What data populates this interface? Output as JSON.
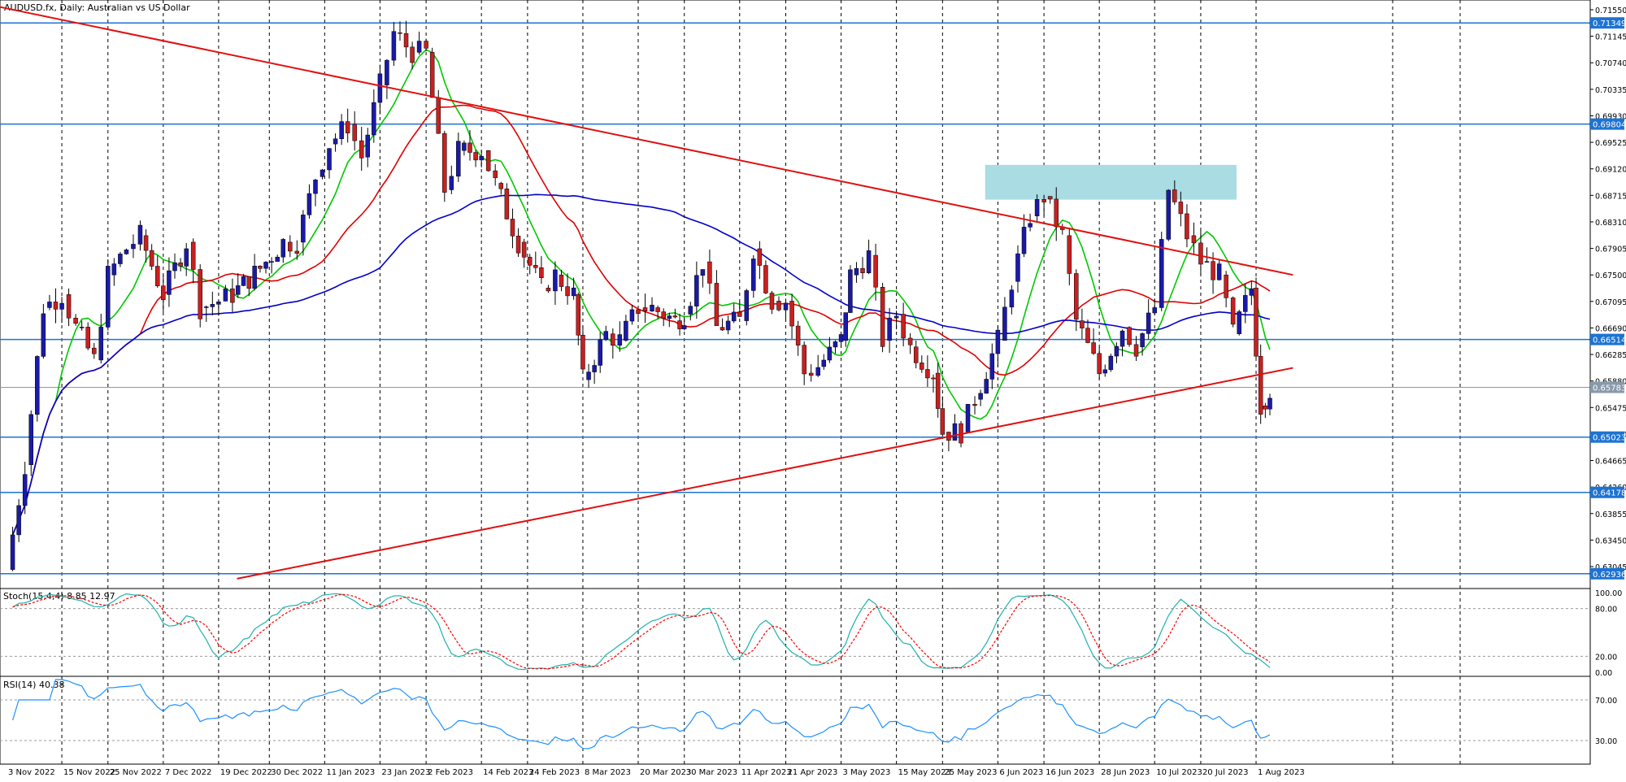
{
  "chart_data": {
    "type": "candlestick",
    "symbol_title": "AUDUSD.fx, Daily:  Australian vs US Dollar",
    "price_axis_ticks": [
      "0.71550",
      "0.71145",
      "0.70740",
      "0.70335",
      "0.69930",
      "0.69525",
      "0.69120",
      "0.68715",
      "0.68310",
      "0.67905",
      "0.67500",
      "0.67095",
      "0.66690",
      "0.66285",
      "0.65880",
      "0.65475",
      "0.65070",
      "0.64665",
      "0.64260",
      "0.63855",
      "0.63450",
      "0.63045"
    ],
    "date_labels": [
      "3 Nov 2022",
      "15 Nov 2022",
      "25 Nov 2022",
      "7 Dec 2022",
      "19 Dec 2022",
      "30 Dec 2022",
      "11 Jan 2023",
      "23 Jan 2023",
      "2 Feb 2023",
      "14 Feb 2023",
      "24 Feb 2023",
      "8 Mar 2023",
      "20 Mar 2023",
      "30 Mar 2023",
      "11 Apr 2023",
      "21 Apr 2023",
      "3 May 2023",
      "15 May 2023",
      "25 May 2023",
      "6 Jun 2023",
      "16 Jun 2023",
      "28 Jun 2023",
      "10 Jul 2023",
      "20 Jul 2023",
      "1 Aug 2023"
    ],
    "horizontal_levels": [
      {
        "label": "0.71349",
        "value": 0.71349
      },
      {
        "label": "0.69804",
        "value": 0.69804
      },
      {
        "label": "0.66514",
        "value": 0.66514
      },
      {
        "label": "0.65023",
        "value": 0.65023
      },
      {
        "label": "0.64178",
        "value": 0.64178
      },
      {
        "label": "0.62936",
        "value": 0.62936
      }
    ],
    "current_price": {
      "label": "0.65783",
      "value": 0.65783
    },
    "trendlines": [
      {
        "name": "resistance",
        "from": [
          "30 Oct 2022",
          0.7163
        ],
        "to": [
          "9 Aug 2023",
          0.675
        ]
      },
      {
        "name": "support",
        "from": [
          "23 Dec 2022",
          0.6286
        ],
        "to": [
          "9 Aug 2023",
          0.6608
        ]
      }
    ],
    "resistance_zone": {
      "from": "5 Jun 2023",
      "to": "26 Jul 2023",
      "low": 0.6865,
      "high": 0.6918
    },
    "moving_averages": [
      {
        "color": "#00c800",
        "period": "short"
      },
      {
        "color": "#e00000",
        "period": "medium"
      },
      {
        "color": "#0000c8",
        "period": "long"
      }
    ],
    "ohlc_daily_close_points": [
      [
        "3 Nov 2022",
        0.63
      ],
      [
        "7 Nov 2022",
        0.646
      ],
      [
        "11 Nov 2022",
        0.67
      ],
      [
        "15 Nov 2022",
        0.672
      ],
      [
        "18 Nov 2022",
        0.667
      ],
      [
        "22 Nov 2022",
        0.662
      ],
      [
        "25 Nov 2022",
        0.675
      ],
      [
        "29 Nov 2022",
        0.679
      ],
      [
        "2 Dec 2022",
        0.681
      ],
      [
        "7 Dec 2022",
        0.672
      ],
      [
        "12 Dec 2022",
        0.68
      ],
      [
        "15 Dec 2022",
        0.67
      ],
      [
        "19 Dec 2022",
        0.671
      ],
      [
        "22 Dec 2022",
        0.672
      ],
      [
        "28 Dec 2022",
        0.676
      ],
      [
        "2 Jan 2023",
        0.68
      ],
      [
        "5 Jan 2023",
        0.68
      ],
      [
        "9 Jan 2023",
        0.69
      ],
      [
        "12 Jan 2023",
        0.695
      ],
      [
        "16 Jan 2023",
        0.698
      ],
      [
        "19 Jan 2023",
        0.693
      ],
      [
        "23 Jan 2023",
        0.704
      ],
      [
        "26 Jan 2023",
        0.712
      ],
      [
        "30 Jan 2023",
        0.709
      ],
      [
        "2 Feb 2023",
        0.709
      ],
      [
        "6 Feb 2023",
        0.688
      ],
      [
        "9 Feb 2023",
        0.694
      ],
      [
        "14 Feb 2023",
        0.694
      ],
      [
        "17 Feb 2023",
        0.689
      ],
      [
        "22 Feb 2023",
        0.68
      ],
      [
        "27 Feb 2023",
        0.673
      ],
      [
        "2 Mar 2023",
        0.675
      ],
      [
        "6 Mar 2023",
        0.672
      ],
      [
        "8 Mar 2023",
        0.659
      ],
      [
        "13 Mar 2023",
        0.666
      ],
      [
        "16 Mar 2023",
        0.665
      ],
      [
        "20 Mar 2023",
        0.67
      ],
      [
        "23 Mar 2023",
        0.67
      ],
      [
        "28 Mar 2023",
        0.668
      ],
      [
        "30 Mar 2023",
        0.669
      ],
      [
        "3 Apr 2023",
        0.677
      ],
      [
        "6 Apr 2023",
        0.667
      ],
      [
        "11 Apr 2023",
        0.668
      ],
      [
        "14 Apr 2023",
        0.679
      ],
      [
        "18 Apr 2023",
        0.671
      ],
      [
        "21 Apr 2023",
        0.671
      ],
      [
        "25 Apr 2023",
        0.66
      ],
      [
        "28 Apr 2023",
        0.661
      ],
      [
        "3 May 2023",
        0.665
      ],
      [
        "5 May 2023",
        0.675
      ],
      [
        "9 May 2023",
        0.678
      ],
      [
        "12 May 2023",
        0.665
      ],
      [
        "15 May 2023",
        0.669
      ],
      [
        "18 May 2023",
        0.664
      ],
      [
        "23 May 2023",
        0.66
      ],
      [
        "25 May 2023",
        0.651
      ],
      [
        "29 May 2023",
        0.651
      ],
      [
        "1 Jun 2023",
        0.656
      ],
      [
        "6 Jun 2023",
        0.665
      ],
      [
        "9 Jun 2023",
        0.674
      ],
      [
        "13 Jun 2023",
        0.684
      ],
      [
        "16 Jun 2023",
        0.687
      ],
      [
        "20 Jun 2023",
        0.681
      ],
      [
        "23 Jun 2023",
        0.668
      ],
      [
        "28 Jun 2023",
        0.66
      ],
      [
        "3 Jul 2023",
        0.667
      ],
      [
        "6 Jul 2023",
        0.664
      ],
      [
        "10 Jul 2023",
        0.67
      ],
      [
        "13 Jul 2023",
        0.688
      ],
      [
        "17 Jul 2023",
        0.681
      ],
      [
        "20 Jul 2023",
        0.677
      ],
      [
        "24 Jul 2023",
        0.675
      ],
      [
        "27 Jul 2023",
        0.666
      ],
      [
        "31 Jul 2023",
        0.673
      ],
      [
        "2 Aug 2023",
        0.655
      ],
      [
        "4 Aug 2023",
        0.6575
      ]
    ]
  },
  "stoch": {
    "label": "Stoch(15,4,4) 8.85 12.97",
    "ticks": [
      "100.00",
      "80.00",
      "20.00",
      "0.00"
    ],
    "main_line_color": "#20b2aa",
    "signal_line_color": "#ff0000"
  },
  "rsi": {
    "label": "RSI(14) 40.38",
    "ticks": [
      "70.00",
      "30.00"
    ],
    "line_color": "#1e90ff"
  }
}
